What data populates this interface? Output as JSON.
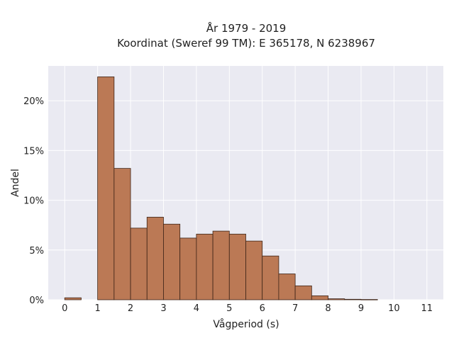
{
  "chart_data": {
    "type": "bar",
    "title_line1": "År 1979 - 2019",
    "title_line2": "Koordinat (Sweref 99 TM): E 365178, N 6238967",
    "xlabel": "Vågperiod (s)",
    "ylabel": "Andel",
    "bin_width": 0.5,
    "bins": [
      {
        "x": 0.0,
        "value": 0.2
      },
      {
        "x": 0.5,
        "value": 0.0
      },
      {
        "x": 1.0,
        "value": 22.4
      },
      {
        "x": 1.5,
        "value": 13.2
      },
      {
        "x": 2.0,
        "value": 7.2
      },
      {
        "x": 2.5,
        "value": 8.3
      },
      {
        "x": 3.0,
        "value": 7.6
      },
      {
        "x": 3.5,
        "value": 6.2
      },
      {
        "x": 4.0,
        "value": 6.6
      },
      {
        "x": 4.5,
        "value": 6.9
      },
      {
        "x": 5.0,
        "value": 6.6
      },
      {
        "x": 5.5,
        "value": 5.9
      },
      {
        "x": 6.0,
        "value": 4.4
      },
      {
        "x": 6.5,
        "value": 2.6
      },
      {
        "x": 7.0,
        "value": 1.4
      },
      {
        "x": 7.5,
        "value": 0.4
      },
      {
        "x": 8.0,
        "value": 0.1
      },
      {
        "x": 8.5,
        "value": 0.05
      },
      {
        "x": 9.0,
        "value": 0.03
      }
    ],
    "xlim": [
      -0.5,
      11.5
    ],
    "ylim": [
      0,
      23.5
    ],
    "xticks": [
      0,
      1,
      2,
      3,
      4,
      5,
      6,
      7,
      8,
      9,
      10,
      11
    ],
    "yticks": [
      0,
      5,
      10,
      15,
      20
    ],
    "ytick_labels": [
      "0%",
      "5%",
      "10%",
      "15%",
      "20%"
    ],
    "grid": true,
    "colors": {
      "bar_fill": "#bb7955",
      "bar_edge": "#3d2417",
      "plot_bg": "#eaeaf2",
      "grid": "#ffffff"
    }
  }
}
